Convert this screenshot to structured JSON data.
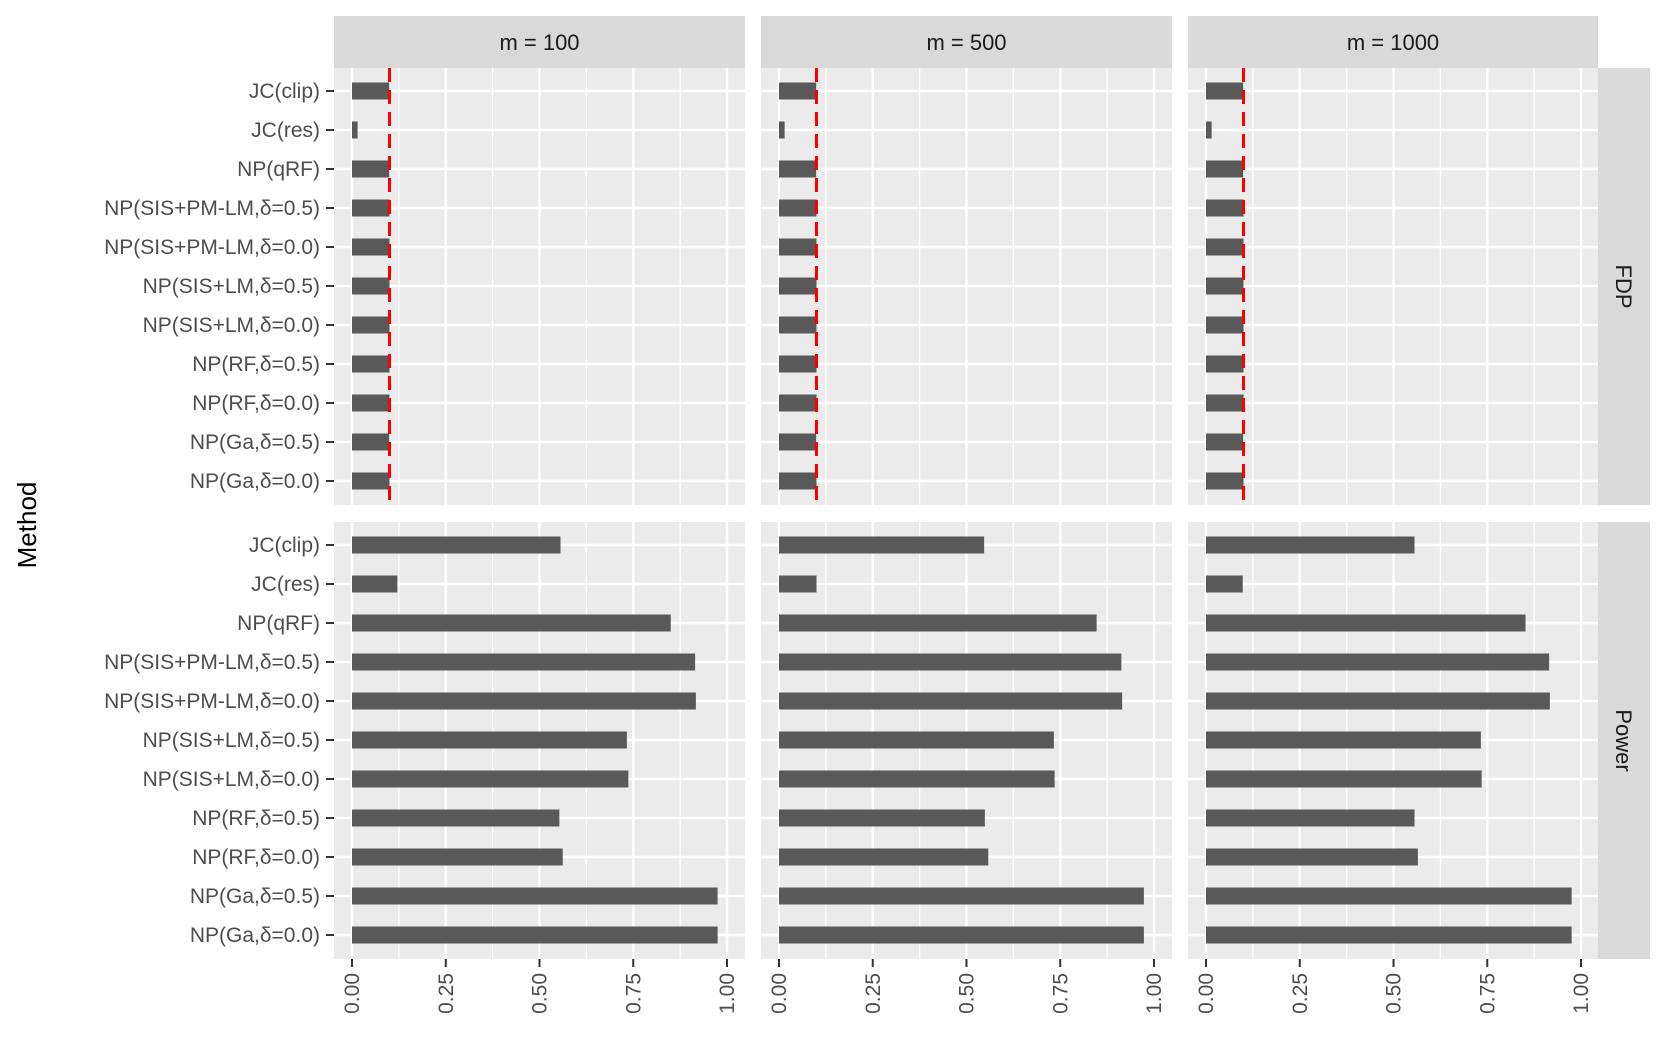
{
  "chart_data": {
    "type": "bar",
    "orientation": "horizontal",
    "ylabel": "Method",
    "xlabel": "",
    "xlim": [
      0,
      1
    ],
    "x_ticks": [
      "0.00",
      "0.25",
      "0.50",
      "0.75",
      "1.00"
    ],
    "grid": true,
    "legend": "none",
    "colors": {
      "bar": "#595959",
      "reference_line": "#ff0000",
      "panel_bg": "#ebebeb",
      "strip_bg": "#d9d9d9"
    },
    "categories": [
      "JC(clip)",
      "JC(res)",
      "NP(qRF)",
      "NP(SIS+PM-LM,δ=0.5)",
      "NP(SIS+PM-LM,δ=0.0)",
      "NP(SIS+LM,δ=0.5)",
      "NP(SIS+LM,δ=0.0)",
      "NP(RF,δ=0.5)",
      "NP(RF,δ=0.0)",
      "NP(Ga,δ=0.5)",
      "NP(Ga,δ=0.0)"
    ],
    "col_facets": [
      "m = 100",
      "m = 500",
      "m = 1000"
    ],
    "row_facets": [
      "FDP",
      "Power"
    ],
    "reference_line": {
      "facet_row": "FDP",
      "x": 0.1,
      "style": "dashed"
    },
    "panels": [
      {
        "row": "FDP",
        "col": "m = 100",
        "values": [
          0.099,
          0.015,
          0.099,
          0.1,
          0.1,
          0.1,
          0.1,
          0.1,
          0.1,
          0.099,
          0.1
        ]
      },
      {
        "row": "FDP",
        "col": "m = 500",
        "values": [
          0.099,
          0.015,
          0.099,
          0.1,
          0.1,
          0.1,
          0.1,
          0.1,
          0.1,
          0.099,
          0.1
        ]
      },
      {
        "row": "FDP",
        "col": "m = 1000",
        "values": [
          0.099,
          0.015,
          0.099,
          0.1,
          0.1,
          0.1,
          0.1,
          0.1,
          0.1,
          0.099,
          0.1
        ]
      },
      {
        "row": "Power",
        "col": "m = 100",
        "values": [
          0.556,
          0.121,
          0.85,
          0.915,
          0.917,
          0.733,
          0.737,
          0.553,
          0.562,
          0.975,
          0.975
        ]
      },
      {
        "row": "Power",
        "col": "m = 500",
        "values": [
          0.547,
          0.1,
          0.847,
          0.913,
          0.915,
          0.733,
          0.735,
          0.549,
          0.558,
          0.973,
          0.973
        ]
      },
      {
        "row": "Power",
        "col": "m = 1000",
        "values": [
          0.556,
          0.098,
          0.852,
          0.915,
          0.917,
          0.733,
          0.735,
          0.556,
          0.565,
          0.975,
          0.975
        ]
      }
    ]
  }
}
